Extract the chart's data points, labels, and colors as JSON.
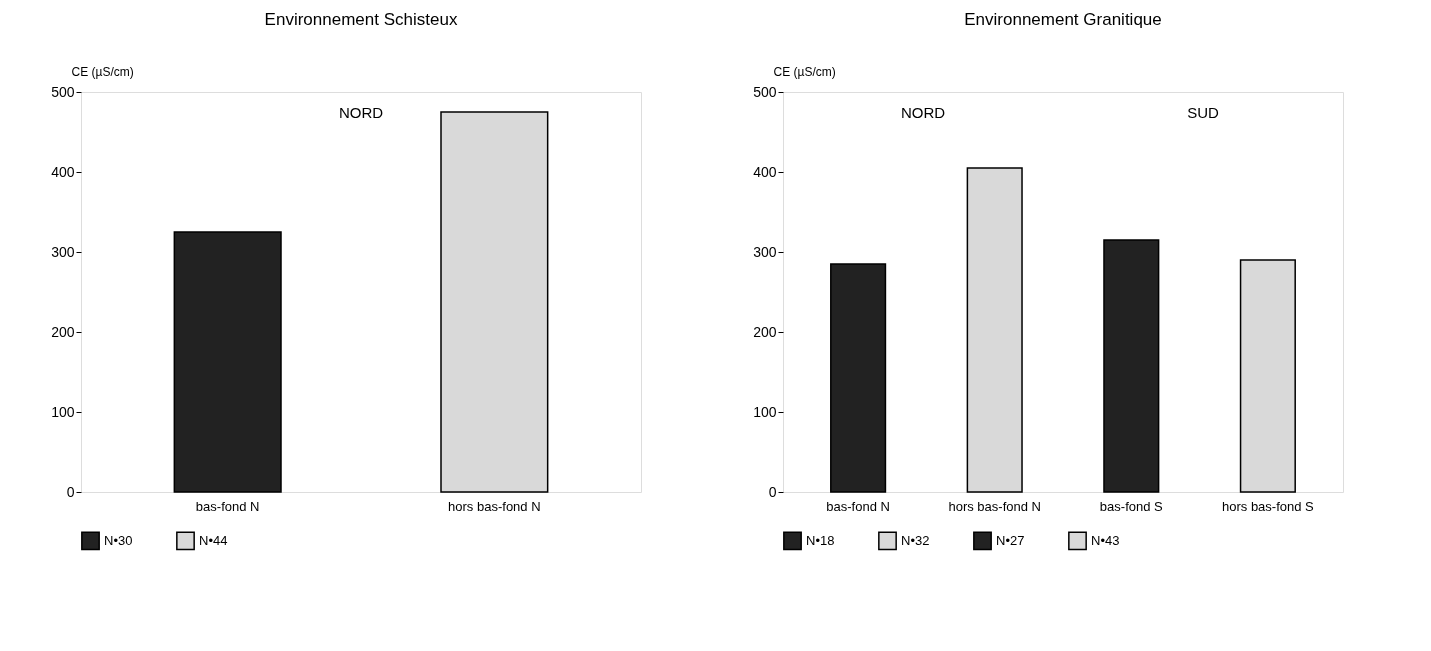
{
  "chart_data": [
    {
      "type": "bar",
      "title": "Environnement Schisteux",
      "ylabel": "CE (µS/cm)",
      "categories": [
        "bas-fond N",
        "hors bas-fond N"
      ],
      "series": [
        {
          "name": "N•30",
          "color": "#222222",
          "values": [
            325,
            null
          ]
        },
        {
          "name": "N•44",
          "color": "#d9d9d9",
          "values": [
            null,
            475
          ]
        }
      ],
      "ylim": [
        0,
        500
      ],
      "yticks": [
        0,
        100,
        200,
        300,
        400,
        500
      ],
      "grid": false,
      "legend": "bottom",
      "annotations": [
        "NORD"
      ]
    },
    {
      "type": "bar",
      "title": "Environnement Granitique",
      "ylabel": "CE (µS/cm)",
      "categories": [
        "bas-fond N",
        "hors bas-fond N",
        "bas-fond S",
        "hors bas-fond S"
      ],
      "series": [
        {
          "name": "N•18",
          "color": "#222222",
          "values": [
            285,
            null,
            null,
            null
          ]
        },
        {
          "name": "N•32",
          "color": "#d9d9d9",
          "values": [
            null,
            405,
            null,
            null
          ]
        },
        {
          "name": "N•27",
          "color": "#222222",
          "values": [
            null,
            null,
            315,
            null
          ]
        },
        {
          "name": "N•43",
          "color": "#d9d9d9",
          "values": [
            null,
            null,
            null,
            290
          ]
        }
      ],
      "ylim": [
        0,
        500
      ],
      "yticks": [
        0,
        100,
        200,
        300,
        400,
        500
      ],
      "grid": false,
      "legend": "bottom",
      "annotations": [
        "NORD",
        "SUD"
      ]
    }
  ]
}
